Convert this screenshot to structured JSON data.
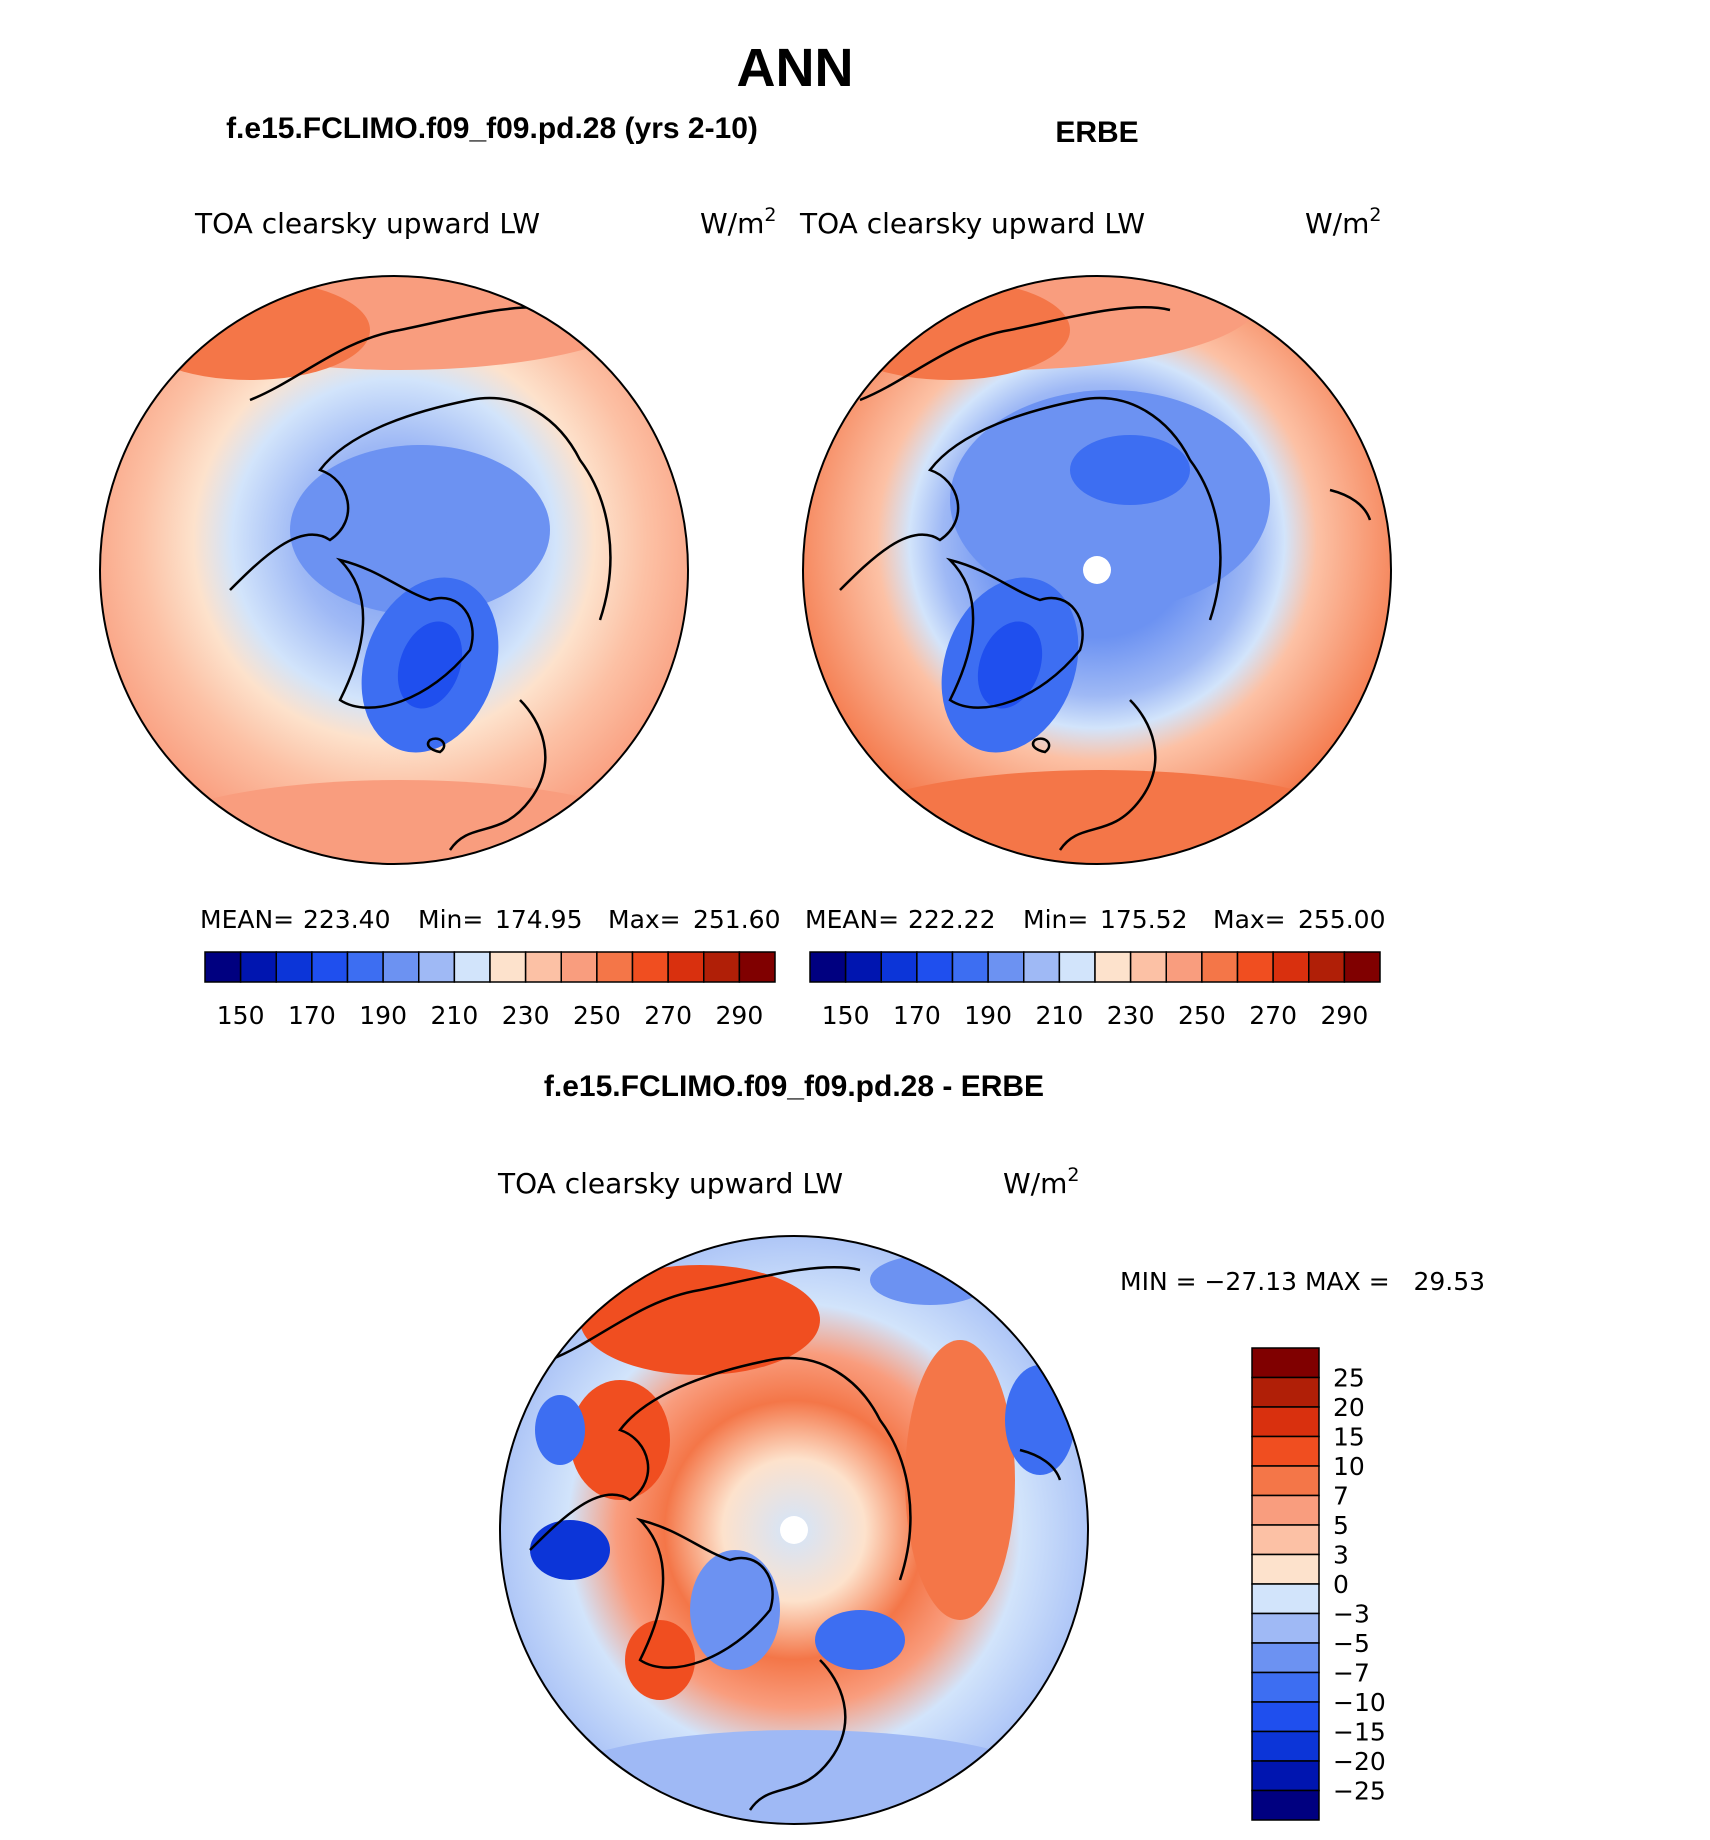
{
  "main_title": "ANN",
  "panels": [
    {
      "title": "f.e15.FCLIMO.f09_f09.pd.28 (yrs 2-10)",
      "variable": "TOA clearsky upward LW",
      "units_base": "W/m",
      "units_exp": "2",
      "stats": {
        "mean_label": "MEAN=",
        "mean": "223.40",
        "min_label": "Min=",
        "min": "174.95",
        "max_label": "Max=",
        "max": "251.60"
      }
    },
    {
      "title": "ERBE",
      "variable": "TOA clearsky upward LW",
      "units_base": "W/m",
      "units_exp": "2",
      "stats": {
        "mean_label": "MEAN=",
        "mean": "222.22",
        "min_label": "Min=",
        "min": "175.52",
        "max_label": "Max=",
        "max": "255.00"
      }
    }
  ],
  "abs_colorbar": {
    "colors": [
      "#000080",
      "#0015b0",
      "#0c35d8",
      "#1f4fee",
      "#3d6ef2",
      "#6c92f2",
      "#9fb9f5",
      "#d2e4fb",
      "#fde2cc",
      "#fcc1a5",
      "#f99d7e",
      "#f47648",
      "#f04e20",
      "#d9300e",
      "#b01f07",
      "#800000"
    ],
    "labels": [
      "150",
      "170",
      "190",
      "210",
      "230",
      "250",
      "270",
      "290"
    ]
  },
  "diff_panel": {
    "title": "f.e15.FCLIMO.f09_f09.pd.28 - ERBE",
    "variable": "TOA clearsky upward LW",
    "units_base": "W/m",
    "units_exp": "2",
    "minmax": "MIN = −27.13 MAX =   29.53"
  },
  "diff_colorbar": {
    "colors_top_to_bottom": [
      "#800000",
      "#b01f07",
      "#d9300e",
      "#f04e20",
      "#f47648",
      "#f99d7e",
      "#fcc1a5",
      "#fde2cc",
      "#d2e4fb",
      "#9fb9f5",
      "#6c92f2",
      "#3d6ef2",
      "#1f4fee",
      "#0c35d8",
      "#0015b0",
      "#000080"
    ],
    "labels_top_to_bottom": [
      "25",
      "20",
      "15",
      "10",
      "7",
      "5",
      "3",
      "0",
      "−3",
      "−5",
      "−7",
      "−10",
      "−15",
      "−20",
      "−25"
    ]
  }
}
